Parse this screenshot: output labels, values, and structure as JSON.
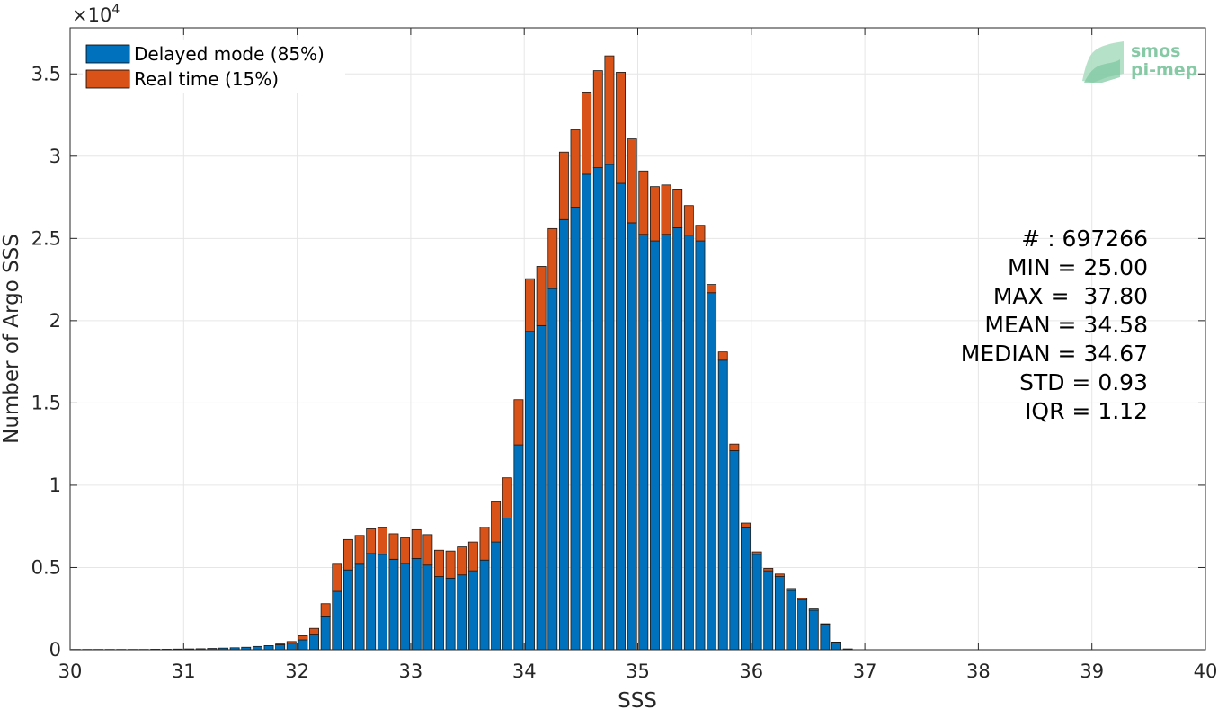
{
  "chart_data": {
    "type": "bar",
    "stacked": true,
    "xlabel": "SSS",
    "ylabel": "Number of Argo SSS",
    "y_exponent_label": "×10",
    "y_exponent_power": "4",
    "xlim": [
      30,
      40
    ],
    "ylim": [
      0,
      37800
    ],
    "x_ticks": [
      "30",
      "31",
      "32",
      "33",
      "34",
      "35",
      "36",
      "37",
      "38",
      "39",
      "40"
    ],
    "y_ticks": [
      "0",
      "0.5",
      "1",
      "1.5",
      "2",
      "2.5",
      "3",
      "3.5"
    ],
    "y_tick_values": [
      0,
      5000,
      10000,
      15000,
      20000,
      25000,
      30000,
      35000
    ],
    "grid": true,
    "legend_placement": "top-left",
    "bin_width": 0.1,
    "x": [
      30.0,
      30.1,
      30.2,
      30.3,
      30.4,
      30.5,
      30.6,
      30.7,
      30.8,
      30.9,
      31.0,
      31.1,
      31.2,
      31.3,
      31.4,
      31.5,
      31.6,
      31.7,
      31.8,
      31.9,
      32.0,
      32.1,
      32.2,
      32.3,
      32.4,
      32.5,
      32.6,
      32.7,
      32.8,
      32.9,
      33.0,
      33.1,
      33.2,
      33.3,
      33.4,
      33.5,
      33.6,
      33.7,
      33.8,
      33.9,
      34.0,
      34.1,
      34.2,
      34.3,
      34.4,
      34.5,
      34.6,
      34.7,
      34.8,
      34.9,
      35.0,
      35.1,
      35.2,
      35.3,
      35.4,
      35.5,
      35.6,
      35.7,
      35.8,
      35.9,
      36.0,
      36.1,
      36.2,
      36.3,
      36.4,
      36.5,
      36.6,
      36.7,
      36.8
    ],
    "series": [
      {
        "name": "Delayed mode (85%)",
        "color": "#0072bd",
        "values": [
          20,
          20,
          20,
          20,
          20,
          20,
          20,
          30,
          30,
          40,
          50,
          60,
          80,
          100,
          120,
          150,
          200,
          250,
          300,
          400,
          600,
          900,
          2000,
          3550,
          4850,
          5200,
          5850,
          5800,
          5500,
          5250,
          5550,
          5150,
          4450,
          4350,
          4550,
          4800,
          5450,
          6550,
          8000,
          12450,
          19350,
          19700,
          21950,
          26150,
          26900,
          28900,
          29300,
          29500,
          28350,
          25950,
          25250,
          24850,
          25250,
          25650,
          25200,
          24850,
          21700,
          17600,
          12100,
          7400,
          5800,
          4800,
          4450,
          3600,
          3050,
          2400,
          1550,
          450,
          50
        ]
      },
      {
        "name": "Real time (15%)",
        "color": "#d95319",
        "values": [
          0,
          0,
          0,
          0,
          0,
          0,
          0,
          0,
          0,
          0,
          0,
          0,
          0,
          0,
          0,
          0,
          0,
          0,
          50,
          100,
          250,
          400,
          800,
          1650,
          1850,
          1750,
          1500,
          1600,
          1550,
          1550,
          1750,
          1850,
          1600,
          1650,
          1700,
          1750,
          2000,
          2450,
          2450,
          2750,
          3200,
          3600,
          3650,
          4100,
          4700,
          5000,
          5900,
          6600,
          6750,
          5100,
          3850,
          3300,
          3000,
          2350,
          1800,
          950,
          500,
          500,
          400,
          300,
          150,
          150,
          150,
          120,
          80,
          80,
          30,
          20,
          0
        ]
      }
    ],
    "stats": [
      "# : 697266",
      "MIN = 25.00",
      "MAX =  37.80",
      "MEAN = 34.58",
      "MEDIAN = 34.67",
      "STD = 0.93",
      "IQR = 1.12"
    ]
  },
  "logo": {
    "line1": "smos",
    "line2": "pi-mep"
  },
  "colors": {
    "delayed": "#0072bd",
    "realtime": "#d95319",
    "grid": "#e6e6e6",
    "axis": "#262626"
  }
}
